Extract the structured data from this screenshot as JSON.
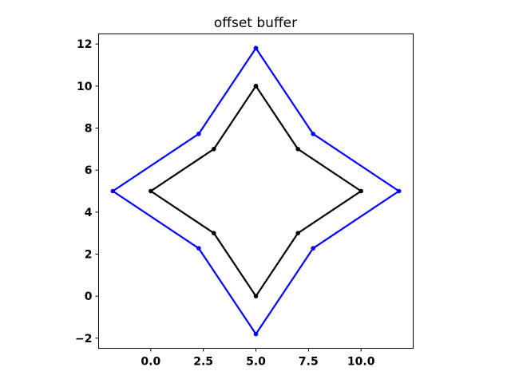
{
  "chart_data": {
    "type": "line",
    "title": "offset buffer",
    "xlabel": "",
    "ylabel": "",
    "xlim": [
      -2.48,
      12.48
    ],
    "ylim": [
      -2.48,
      12.48
    ],
    "aspect": "equal",
    "grid": false,
    "xticks": [
      0.0,
      2.5,
      5.0,
      7.5,
      10.0
    ],
    "xtick_labels": [
      "0.0",
      "2.5",
      "5.0",
      "7.5",
      "10.0"
    ],
    "yticks": [
      -2,
      0,
      2,
      4,
      6,
      8,
      10,
      12
    ],
    "ytick_labels": [
      "−2",
      "0",
      "2",
      "4",
      "6",
      "8",
      "10",
      "12"
    ],
    "series": [
      {
        "color": "#0000ff",
        "marker": "circle",
        "x": [
          5.0,
          7.721,
          11.803,
          7.721,
          5.0,
          2.279,
          -1.803,
          2.279,
          5.0
        ],
        "y": [
          11.803,
          7.721,
          5.0,
          2.279,
          -1.803,
          2.279,
          5.0,
          7.721,
          11.803
        ]
      },
      {
        "color": "#000000",
        "marker": "circle",
        "x": [
          5,
          7,
          10,
          7,
          5,
          3,
          0,
          3,
          5
        ],
        "y": [
          10,
          7,
          5,
          3,
          0,
          3,
          5,
          7,
          10
        ]
      }
    ]
  }
}
